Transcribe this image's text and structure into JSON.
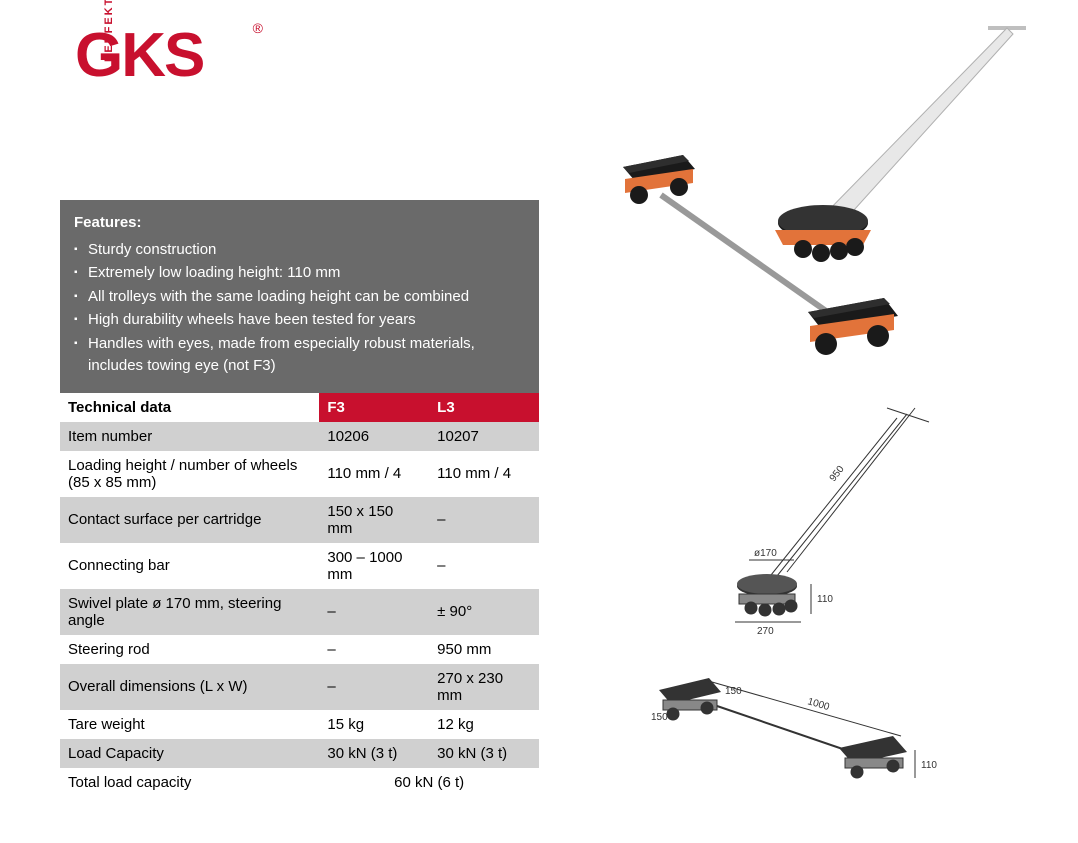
{
  "brand": {
    "name": "GKS",
    "subbrand": "PERFEKT",
    "registered": "®",
    "primary_color": "#c8102e"
  },
  "features": {
    "title": "Features:",
    "box_bg": "#6a6a6a",
    "text_color": "#ffffff",
    "items": [
      "Sturdy construction",
      "Extremely low loading height: 110 mm",
      "All trolleys with the same loading height can be combined",
      "High durability wheels have been tested for years",
      "Handles with eyes, made from especially robust materials, includes towing eye (not F3)"
    ]
  },
  "table": {
    "header_bg": "#c8102e",
    "header_fg": "#ffffff",
    "shade_bg": "#d0d0d0",
    "label_header": "Technical data",
    "col_headers": [
      "F3",
      "L3"
    ],
    "rows": [
      {
        "label": "Item number",
        "vals": [
          "10206",
          "10207"
        ],
        "shade": true
      },
      {
        "label": "Loading height / number of wheels (85 x 85 mm)",
        "vals": [
          "110 mm / 4",
          "110 mm / 4"
        ],
        "shade": false
      },
      {
        "label": "Contact surface per cartridge",
        "vals": [
          "150 x 150 mm",
          "–"
        ],
        "shade": true
      },
      {
        "label": "Connecting bar",
        "vals": [
          "300 – 1000 mm",
          "–"
        ],
        "shade": false
      },
      {
        "label": "Swivel plate ø 170 mm, steering angle",
        "vals": [
          "–",
          "± 90°"
        ],
        "shade": true
      },
      {
        "label": "Steering rod",
        "vals": [
          "–",
          "950 mm"
        ],
        "shade": false
      },
      {
        "label": "Overall dimensions (L x W)",
        "vals": [
          "–",
          "270 x 230 mm"
        ],
        "shade": true
      },
      {
        "label": "Tare weight",
        "vals": [
          "15 kg",
          "12 kg"
        ],
        "shade": false
      },
      {
        "label": "Load Capacity",
        "vals": [
          "30 kN (3 t)",
          "30 kN (3 t)"
        ],
        "shade": true
      }
    ],
    "total_row": {
      "label": "Total load capacity",
      "value": "60 kN (6 t)"
    }
  },
  "drawings": {
    "dims": {
      "steering_rod": "950",
      "swivel_diameter": "ø170",
      "width": "270",
      "height": "110",
      "bar_length": "1000",
      "cartridge": "150",
      "cartridge2": "150",
      "height2": "110"
    },
    "line_color": "#333333",
    "trolley_orange": "#e2733a",
    "trolley_black": "#1a1a1a",
    "metal": "#dcdcdc"
  }
}
